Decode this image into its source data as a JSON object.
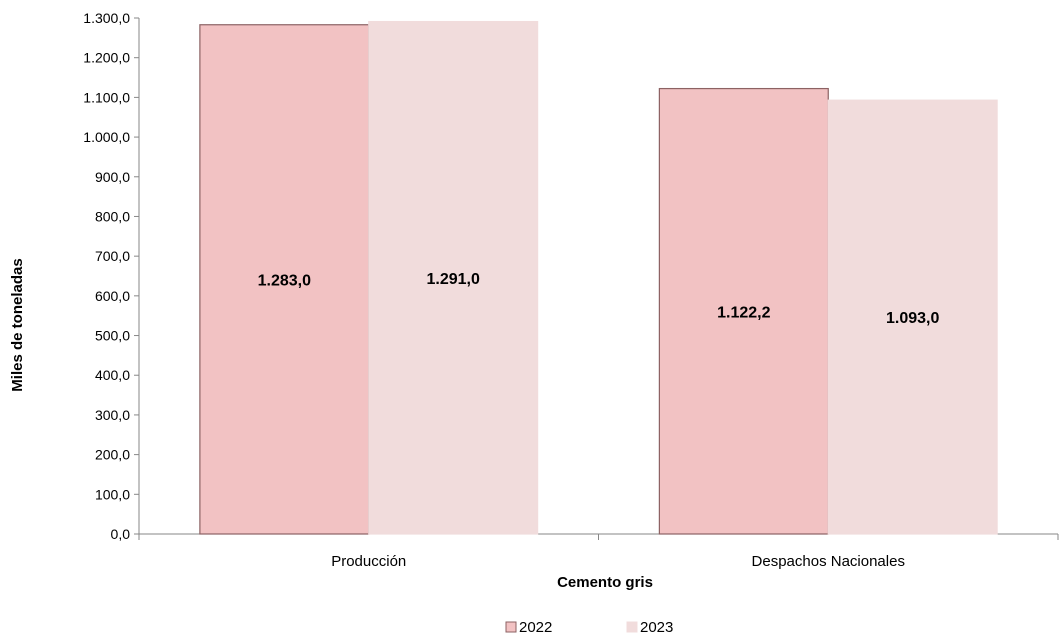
{
  "chart_data": {
    "type": "bar",
    "title": "",
    "categories": [
      "Producción",
      "Despachos Nacionales"
    ],
    "series": [
      {
        "name": "2022",
        "values": [
          1283.0,
          1122.2
        ],
        "labels": [
          "1.283,0",
          "1.122,2"
        ],
        "color": "#f2c2c3",
        "stroke": "#8c6263"
      },
      {
        "name": "2023",
        "values": [
          1291.0,
          1093.0
        ],
        "labels": [
          "1.291,0",
          "1.093,0"
        ],
        "color": "#f1dcdc",
        "stroke": "#f1dcdc"
      }
    ],
    "xlabel": "Cemento gris",
    "ylabel": "Miles de toneladas",
    "ylim": [
      0,
      1300
    ],
    "yticks": [
      0,
      100,
      200,
      300,
      400,
      500,
      600,
      700,
      800,
      900,
      1000,
      1100,
      1200,
      1300
    ],
    "ytick_labels": [
      "0,0",
      "100,0",
      "200,0",
      "300,0",
      "400,0",
      "500,0",
      "600,0",
      "700,0",
      "800,0",
      "900,0",
      "1.000,0",
      "1.100,0",
      "1.200,0",
      "1.300,0"
    ],
    "grid": false,
    "legend_position": "bottom"
  }
}
